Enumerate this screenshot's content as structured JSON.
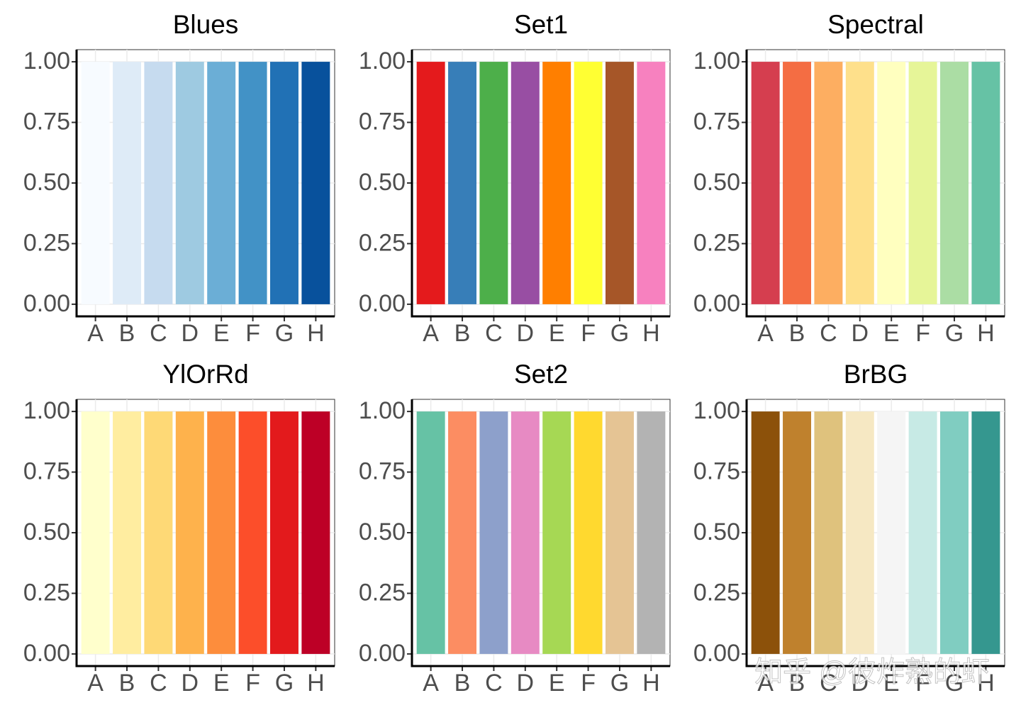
{
  "chart_data": [
    {
      "type": "bar",
      "title": "Blues",
      "categories": [
        "A",
        "B",
        "C",
        "D",
        "E",
        "F",
        "G",
        "H"
      ],
      "values": [
        1,
        1,
        1,
        1,
        1,
        1,
        1,
        1
      ],
      "colors": [
        "#F7FBFF",
        "#DEEBF7",
        "#C6DBEF",
        "#9ECAE1",
        "#6BAED6",
        "#4292C6",
        "#2171B5",
        "#08519C"
      ],
      "ylim": [
        -0.05,
        1.05
      ],
      "yticks": [
        {
          "value": 0,
          "label": "0.00"
        },
        {
          "value": 0.25,
          "label": "0.25"
        },
        {
          "value": 0.5,
          "label": "0.50"
        },
        {
          "value": 0.75,
          "label": "0.75"
        },
        {
          "value": 1,
          "label": "1.00"
        }
      ],
      "grid": true
    },
    {
      "type": "bar",
      "title": "Set1",
      "categories": [
        "A",
        "B",
        "C",
        "D",
        "E",
        "F",
        "G",
        "H"
      ],
      "values": [
        1,
        1,
        1,
        1,
        1,
        1,
        1,
        1
      ],
      "colors": [
        "#E41A1C",
        "#377EB8",
        "#4DAF4A",
        "#984EA3",
        "#FF7F00",
        "#FFFF33",
        "#A65628",
        "#F781BF"
      ],
      "ylim": [
        -0.05,
        1.05
      ],
      "yticks": [
        {
          "value": 0,
          "label": "0.00"
        },
        {
          "value": 0.25,
          "label": "0.25"
        },
        {
          "value": 0.5,
          "label": "0.50"
        },
        {
          "value": 0.75,
          "label": "0.75"
        },
        {
          "value": 1,
          "label": "1.00"
        }
      ],
      "grid": true
    },
    {
      "type": "bar",
      "title": "Spectral",
      "categories": [
        "A",
        "B",
        "C",
        "D",
        "E",
        "F",
        "G",
        "H"
      ],
      "values": [
        1,
        1,
        1,
        1,
        1,
        1,
        1,
        1
      ],
      "colors": [
        "#D53E4F",
        "#F46D43",
        "#FDAE61",
        "#FEE08B",
        "#FFFFBF",
        "#E6F598",
        "#ABDDA4",
        "#66C2A5"
      ],
      "ylim": [
        -0.05,
        1.05
      ],
      "yticks": [
        {
          "value": 0,
          "label": "0.00"
        },
        {
          "value": 0.25,
          "label": "0.25"
        },
        {
          "value": 0.5,
          "label": "0.50"
        },
        {
          "value": 0.75,
          "label": "0.75"
        },
        {
          "value": 1,
          "label": "1.00"
        }
      ],
      "grid": true
    },
    {
      "type": "bar",
      "title": "YlOrRd",
      "categories": [
        "A",
        "B",
        "C",
        "D",
        "E",
        "F",
        "G",
        "H"
      ],
      "values": [
        1,
        1,
        1,
        1,
        1,
        1,
        1,
        1
      ],
      "colors": [
        "#FFFFCC",
        "#FFEDA0",
        "#FED976",
        "#FEB24C",
        "#FD8D3C",
        "#FC4E2A",
        "#E31A1C",
        "#BD0026"
      ],
      "ylim": [
        -0.05,
        1.05
      ],
      "yticks": [
        {
          "value": 0,
          "label": "0.00"
        },
        {
          "value": 0.25,
          "label": "0.25"
        },
        {
          "value": 0.5,
          "label": "0.50"
        },
        {
          "value": 0.75,
          "label": "0.75"
        },
        {
          "value": 1,
          "label": "1.00"
        }
      ],
      "grid": true
    },
    {
      "type": "bar",
      "title": "Set2",
      "categories": [
        "A",
        "B",
        "C",
        "D",
        "E",
        "F",
        "G",
        "H"
      ],
      "values": [
        1,
        1,
        1,
        1,
        1,
        1,
        1,
        1
      ],
      "colors": [
        "#66C2A5",
        "#FC8D62",
        "#8DA0CB",
        "#E78AC3",
        "#A6D854",
        "#FFD92F",
        "#E5C494",
        "#B3B3B3"
      ],
      "ylim": [
        -0.05,
        1.05
      ],
      "yticks": [
        {
          "value": 0,
          "label": "0.00"
        },
        {
          "value": 0.25,
          "label": "0.25"
        },
        {
          "value": 0.5,
          "label": "0.50"
        },
        {
          "value": 0.75,
          "label": "0.75"
        },
        {
          "value": 1,
          "label": "1.00"
        }
      ],
      "grid": true
    },
    {
      "type": "bar",
      "title": "BrBG",
      "categories": [
        "A",
        "B",
        "C",
        "D",
        "E",
        "F",
        "G",
        "H"
      ],
      "values": [
        1,
        1,
        1,
        1,
        1,
        1,
        1,
        1
      ],
      "colors": [
        "#8C510A",
        "#BF812D",
        "#DFC27D",
        "#F6E8C3",
        "#F5F5F5",
        "#C7EAE5",
        "#80CDC1",
        "#35978F"
      ],
      "ylim": [
        -0.05,
        1.05
      ],
      "yticks": [
        {
          "value": 0,
          "label": "0.00"
        },
        {
          "value": 0.25,
          "label": "0.25"
        },
        {
          "value": 0.5,
          "label": "0.50"
        },
        {
          "value": 0.75,
          "label": "0.75"
        },
        {
          "value": 1,
          "label": "1.00"
        }
      ],
      "grid": true
    }
  ],
  "watermark": "知乎 @彼炸熟的虾"
}
